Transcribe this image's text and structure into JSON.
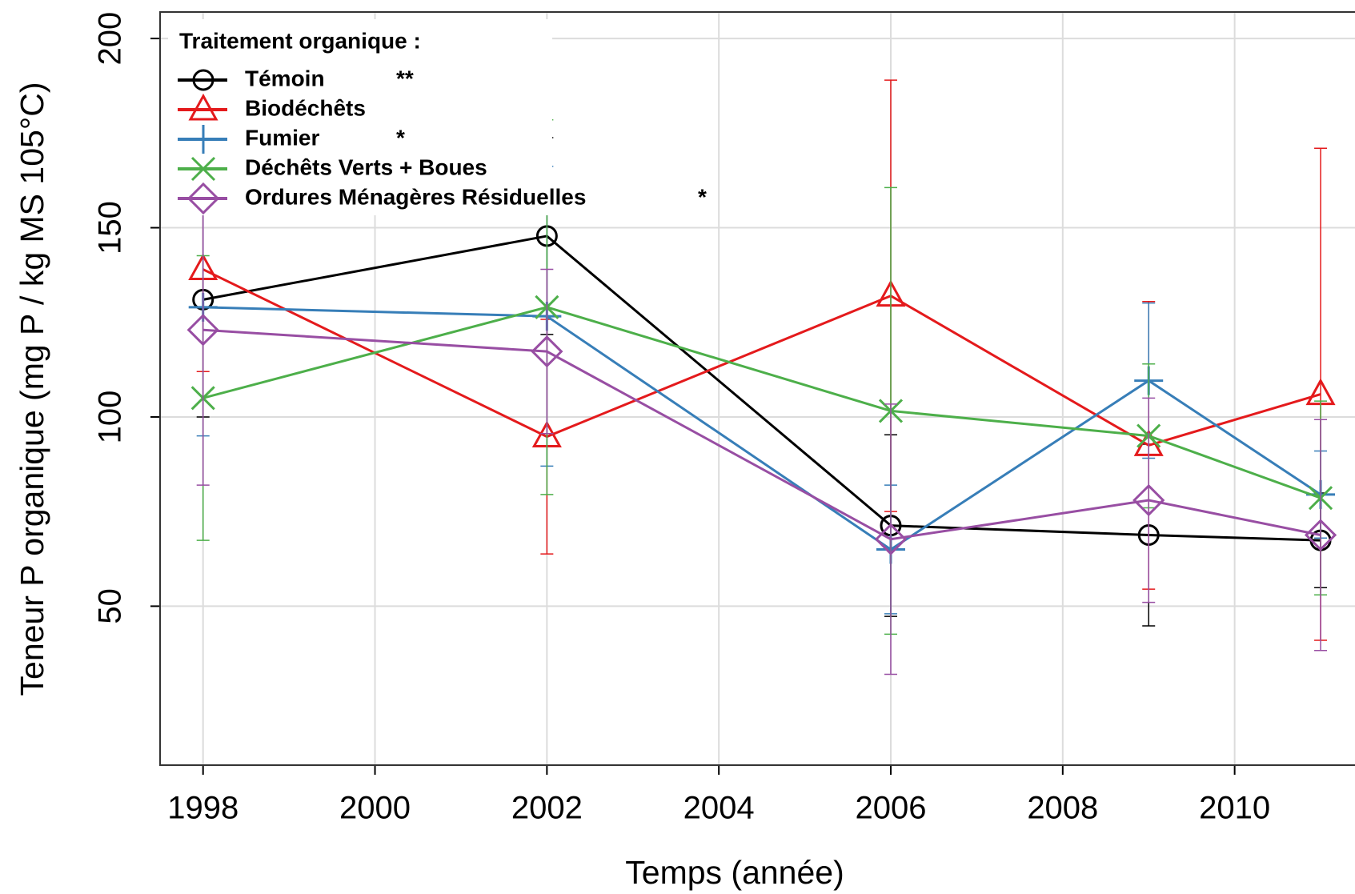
{
  "chart_data": {
    "type": "line",
    "x_label": "Temps (année)",
    "y_label": "Teneur P organique (mg P / kg MS 105°C)",
    "legend_title": "Traitement organique :",
    "legend_position": "upper left",
    "grid": true,
    "x": [
      1998,
      2002,
      2006,
      2009,
      2011
    ],
    "xlim": [
      1997.5,
      2011.4
    ],
    "xticks": [
      1998,
      2000,
      2002,
      2004,
      2006,
      2008,
      2010
    ],
    "ylim": [
      8,
      207
    ],
    "yticks": [
      50,
      100,
      150,
      200
    ],
    "series": [
      {
        "name": "Témoin",
        "annotation": "**",
        "color": "#000000",
        "marker": "circle",
        "values": [
          131,
          147.8,
          71.3,
          68.8,
          67.4
        ],
        "errors": [
          31,
          26,
          24,
          24,
          12.5
        ]
      },
      {
        "name": "Biodéchêts",
        "color": "#e41a1c",
        "marker": "triangle",
        "values": [
          139,
          94.8,
          132,
          92.5,
          106
        ],
        "errors": [
          27,
          31,
          57,
          38,
          65
        ]
      },
      {
        "name": "Fumier",
        "annotation": "*",
        "color": "#377eb8",
        "marker": "plus",
        "values": [
          129,
          126.6,
          65,
          109.6,
          79.5
        ],
        "errors": [
          34,
          39.6,
          17,
          20.5,
          11.5
        ]
      },
      {
        "name": "Déchêts Verts + Boues",
        "color": "#4daf4a",
        "marker": "cross",
        "values": [
          105,
          129,
          101.6,
          95,
          78.6
        ],
        "errors": [
          37.6,
          49.5,
          59,
          19,
          25.6
        ]
      },
      {
        "name": "Ordures Ménagères Résiduelles",
        "annotation": "*",
        "color": "#984ea3",
        "marker": "diamond",
        "values": [
          123,
          117.3,
          67.7,
          78,
          68.8
        ],
        "errors": [
          41,
          21.7,
          35.7,
          27,
          30.5
        ]
      }
    ]
  }
}
